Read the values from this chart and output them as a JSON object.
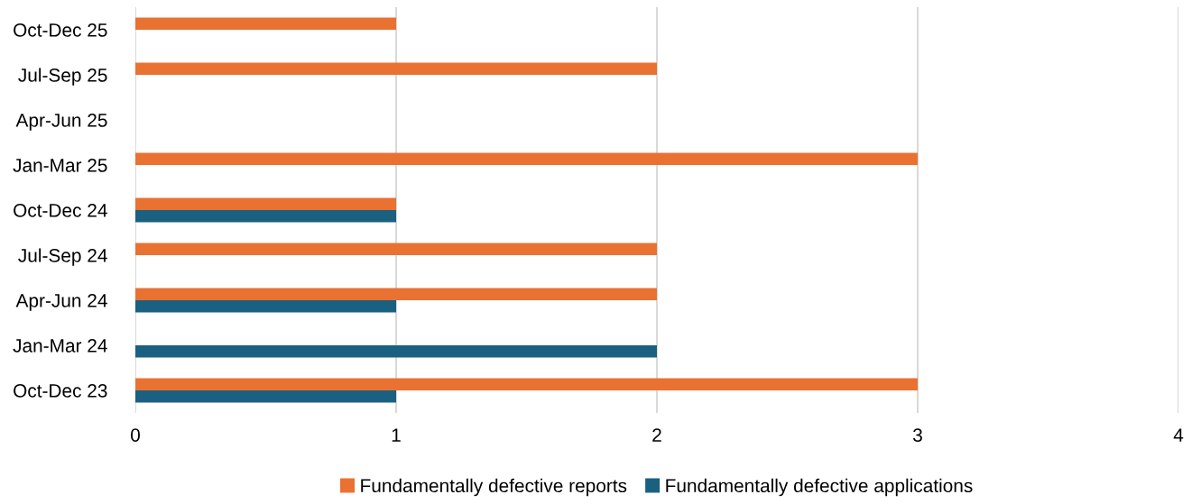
{
  "chart_data": {
    "type": "bar",
    "orientation": "horizontal",
    "categories": [
      "Oct-Dec 25",
      "Jul-Sep 25",
      "Apr-Jun 25",
      "Jan-Mar 25",
      "Oct-Dec 24",
      "Jul-Sep 24",
      "Apr-Jun 24",
      "Jan-Mar 24",
      "Oct-Dec 23"
    ],
    "series": [
      {
        "name": "Fundamentally defective reports",
        "color": "#e97132",
        "values": [
          1,
          2,
          0,
          3,
          1,
          2,
          2,
          0,
          3
        ]
      },
      {
        "name": "Fundamentally defective applications",
        "color": "#1a6080",
        "values": [
          0,
          0,
          0,
          0,
          1,
          0,
          1,
          2,
          1
        ]
      }
    ],
    "xlim": [
      0,
      4
    ],
    "xticks": [
      0,
      1,
      2,
      3,
      4
    ],
    "grid": "x",
    "legend": "bottom"
  }
}
